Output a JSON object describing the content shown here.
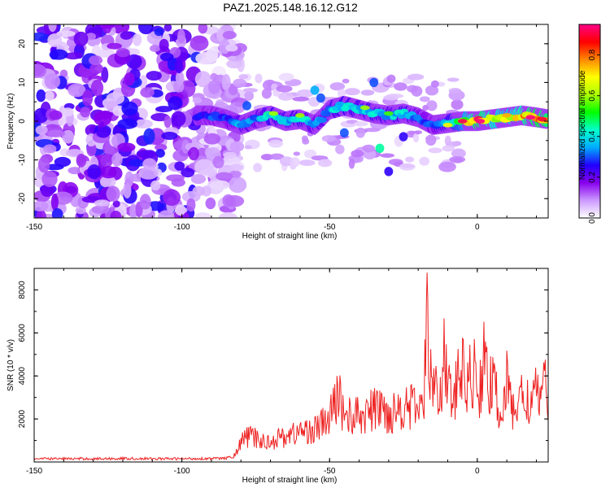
{
  "figure": {
    "title": "PAZ1.2025.148.16.12.G12"
  },
  "chart_data": [
    {
      "type": "heatmap",
      "title": "PAZ1.2025.148.16.12.G12",
      "xlabel": "Height of straight line (km)",
      "ylabel": "Frequency (Hz)",
      "xlim": [
        -150,
        24
      ],
      "ylim": [
        -25,
        25
      ],
      "x_ticks": [
        -150,
        -100,
        -50,
        0
      ],
      "y_ticks": [
        -20,
        -10,
        0,
        10,
        20
      ],
      "colorbar": {
        "label": "Normalized spectral amplitude",
        "range": [
          0.0,
          0.95
        ],
        "ticks": [
          0.0,
          0.2,
          0.4,
          0.6,
          0.8
        ],
        "colors": [
          "#ffffff",
          "#cc99ff",
          "#8800ee",
          "#2200ff",
          "#00aaff",
          "#00ffcc",
          "#00ff00",
          "#aaff00",
          "#ffff00",
          "#ff8800",
          "#ff0000",
          "#ff0088"
        ]
      },
      "noise_region": {
        "x_range": [
          -150,
          -85
        ],
        "y_range": [
          -25,
          25
        ],
        "amplitude_max": 0.25
      },
      "ridge": {
        "x": [
          -95,
          -90,
          -85,
          -80,
          -75,
          -70,
          -65,
          -60,
          -55,
          -50,
          -45,
          -40,
          -35,
          -30,
          -25,
          -20,
          -15,
          -10,
          -5,
          0,
          5,
          10,
          15,
          20,
          24
        ],
        "y": [
          1.5,
          1.5,
          0.5,
          -1,
          0.5,
          1.5,
          0,
          0.5,
          -1,
          3,
          4,
          3,
          2,
          1.5,
          2,
          1,
          -1,
          -0.5,
          0,
          0,
          0.5,
          1,
          1.5,
          1,
          0.5
        ],
        "amplitude": [
          0.28,
          0.3,
          0.3,
          0.4,
          0.35,
          0.45,
          0.4,
          0.45,
          0.35,
          0.4,
          0.45,
          0.4,
          0.45,
          0.4,
          0.45,
          0.35,
          0.3,
          0.45,
          0.6,
          0.9,
          0.75,
          0.7,
          0.8,
          0.9,
          0.85
        ]
      }
    },
    {
      "type": "line",
      "xlabel": "Height of straight line (km)",
      "ylabel": "SNR (10 * v/v)",
      "xlim": [
        -150,
        24
      ],
      "ylim": [
        0,
        9000
      ],
      "x_ticks": [
        -150,
        -100,
        -50,
        0
      ],
      "y_ticks": [
        2000,
        4000,
        6000,
        8000
      ],
      "series": [
        {
          "color": "#ee2222",
          "x": [
            -150,
            -140,
            -130,
            -120,
            -110,
            -100,
            -90,
            -85,
            -82,
            -80,
            -78,
            -75,
            -72,
            -70,
            -65,
            -60,
            -55,
            -50,
            -47,
            -45,
            -40,
            -35,
            -33,
            -30,
            -25,
            -22,
            -20,
            -18,
            -17,
            -16,
            -15,
            -13,
            -11,
            -10,
            -8,
            -6,
            -5,
            -3,
            -1,
            0,
            2,
            4,
            6,
            8,
            10,
            12,
            15,
            18,
            21,
            24
          ],
          "y": [
            150,
            150,
            150,
            160,
            150,
            150,
            160,
            170,
            300,
            900,
            1200,
            1100,
            900,
            1000,
            1200,
            1400,
            1500,
            2000,
            3200,
            2200,
            2100,
            2400,
            2600,
            2200,
            2700,
            2500,
            2600,
            2500,
            8800,
            3500,
            4200,
            3400,
            4900,
            3800,
            2500,
            4500,
            4000,
            3700,
            4300,
            2700,
            4800,
            3600,
            3300,
            2200,
            3600,
            2400,
            3000,
            2800,
            3200,
            3350
          ]
        }
      ]
    }
  ]
}
